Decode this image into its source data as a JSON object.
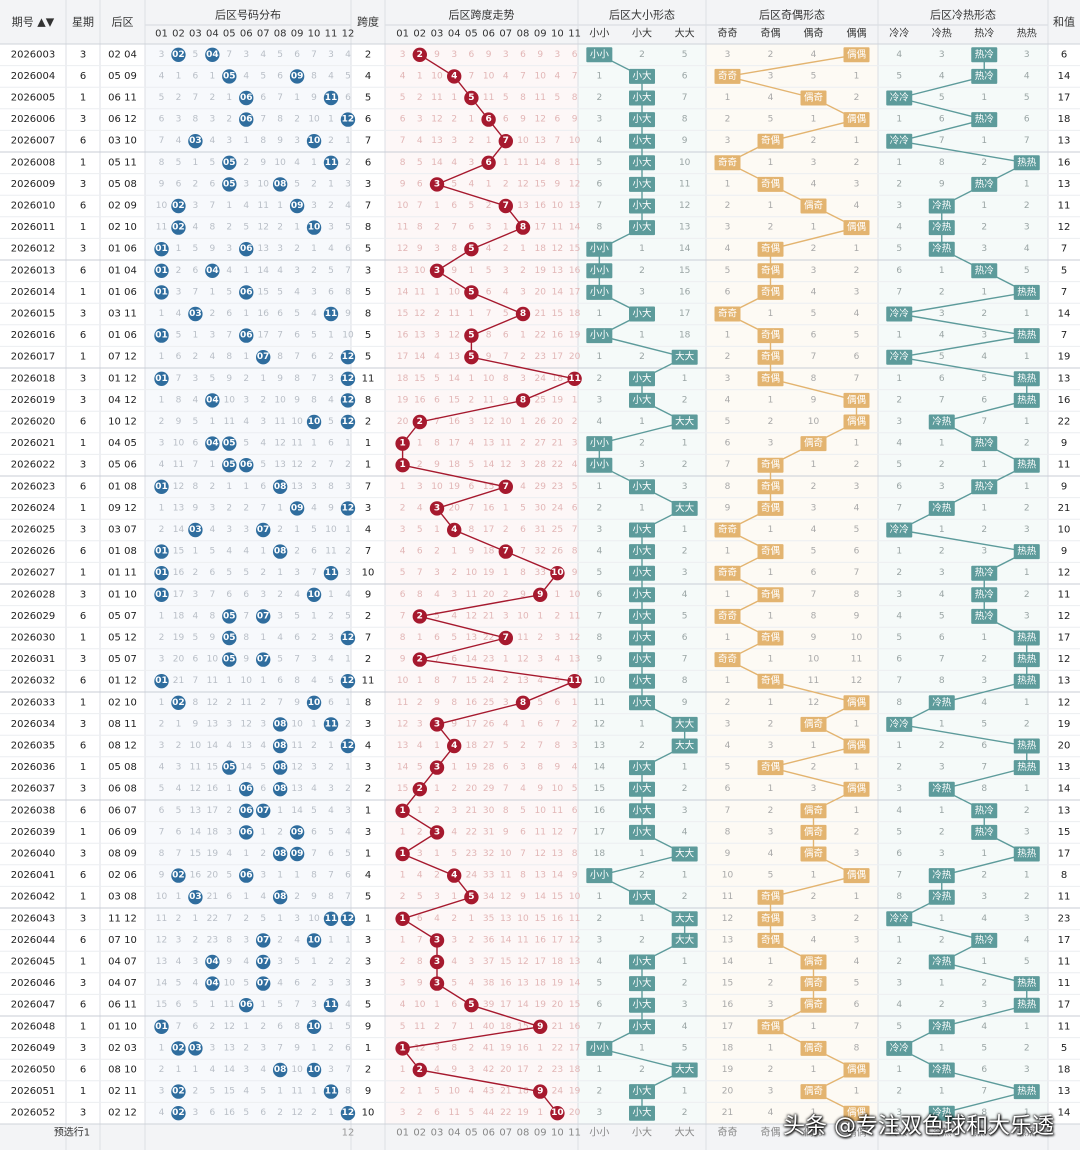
{
  "header": {
    "period": "期号",
    "weekday": "星期",
    "back": "后区",
    "dist": "后区号码分布",
    "span": "跨度",
    "span_trend": "后区跨度走势",
    "size": "后区大小形态",
    "parity": "后区奇偶形态",
    "hotcold": "后区冷热形态",
    "sum": "和值"
  },
  "num_labels": [
    "01",
    "02",
    "03",
    "04",
    "05",
    "06",
    "07",
    "08",
    "09",
    "10",
    "11",
    "12"
  ],
  "span_labels": [
    "01",
    "02",
    "03",
    "04",
    "05",
    "06",
    "07",
    "08",
    "09",
    "10",
    "11"
  ],
  "size_labels": [
    "小小",
    "小大",
    "大大"
  ],
  "parity_labels": [
    "奇奇",
    "奇偶",
    "偶奇",
    "偶偶"
  ],
  "hotcold_labels": [
    "冷冷",
    "冷热",
    "热冷",
    "热热"
  ],
  "footer": {
    "label": "预选行1",
    "dist_tail": "12"
  },
  "watermark": "头条 @专注双色球和大乐透",
  "colors": {
    "blue_ball": "#2f6d9e",
    "red_ball": "#a6192e",
    "size_teal": "#5d9b9b",
    "parity_orange": "#e3b470",
    "hotcold_teal": "#5d9b9b"
  },
  "chart_data": {
    "type": "table",
    "rows": [
      {
        "period": "2026003",
        "week": "3",
        "back": "02 04",
        "nums": [
          2,
          4
        ],
        "span": 2,
        "size": "小小",
        "parity": "偶偶",
        "hc": "热冷",
        "sum": 6
      },
      {
        "period": "2026004",
        "week": "6",
        "back": "05 09",
        "nums": [
          5,
          9
        ],
        "span": 4,
        "size": "小大",
        "parity": "奇奇",
        "hc": "热冷",
        "sum": 14
      },
      {
        "period": "2026005",
        "week": "1",
        "back": "06 11",
        "nums": [
          6,
          11
        ],
        "span": 5,
        "size": "小大",
        "parity": "偶奇",
        "hc": "冷冷",
        "sum": 17
      },
      {
        "period": "2026006",
        "week": "3",
        "back": "06 12",
        "nums": [
          6,
          12
        ],
        "span": 6,
        "size": "小大",
        "parity": "偶偶",
        "hc": "热冷",
        "sum": 18
      },
      {
        "period": "2026007",
        "week": "6",
        "back": "03 10",
        "nums": [
          3,
          10
        ],
        "span": 7,
        "size": "小大",
        "parity": "奇偶",
        "hc": "冷冷",
        "sum": 13
      },
      {
        "period": "2026008",
        "week": "1",
        "back": "05 11",
        "nums": [
          5,
          11
        ],
        "span": 6,
        "size": "小大",
        "parity": "奇奇",
        "hc": "热热",
        "sum": 16
      },
      {
        "period": "2026009",
        "week": "3",
        "back": "05 08",
        "nums": [
          5,
          8
        ],
        "span": 3,
        "size": "小大",
        "parity": "奇偶",
        "hc": "热冷",
        "sum": 13
      },
      {
        "period": "2026010",
        "week": "6",
        "back": "02 09",
        "nums": [
          2,
          9
        ],
        "span": 7,
        "size": "小大",
        "parity": "偶奇",
        "hc": "冷热",
        "sum": 11
      },
      {
        "period": "2026011",
        "week": "1",
        "back": "02 10",
        "nums": [
          2,
          10
        ],
        "span": 8,
        "size": "小大",
        "parity": "偶偶",
        "hc": "冷热",
        "sum": 12
      },
      {
        "period": "2026012",
        "week": "3",
        "back": "01 06",
        "nums": [
          1,
          6
        ],
        "span": 5,
        "size": "小小",
        "parity": "奇偶",
        "hc": "冷热",
        "sum": 7
      },
      {
        "period": "2026013",
        "week": "6",
        "back": "01 04",
        "nums": [
          1,
          4
        ],
        "span": 3,
        "size": "小小",
        "parity": "奇偶",
        "hc": "热冷",
        "sum": 5
      },
      {
        "period": "2026014",
        "week": "1",
        "back": "01 06",
        "nums": [
          1,
          6
        ],
        "span": 5,
        "size": "小小",
        "parity": "奇偶",
        "hc": "热热",
        "sum": 7
      },
      {
        "period": "2026015",
        "week": "3",
        "back": "03 11",
        "nums": [
          3,
          11
        ],
        "span": 8,
        "size": "小大",
        "parity": "奇奇",
        "hc": "冷冷",
        "sum": 14
      },
      {
        "period": "2026016",
        "week": "6",
        "back": "01 06",
        "nums": [
          1,
          6
        ],
        "span": 5,
        "size": "小小",
        "parity": "奇偶",
        "hc": "热热",
        "sum": 7
      },
      {
        "period": "2026017",
        "week": "1",
        "back": "07 12",
        "nums": [
          7,
          12
        ],
        "span": 5,
        "size": "大大",
        "parity": "奇偶",
        "hc": "冷冷",
        "sum": 19
      },
      {
        "period": "2026018",
        "week": "3",
        "back": "01 12",
        "nums": [
          1,
          12
        ],
        "span": 11,
        "size": "小大",
        "parity": "奇偶",
        "hc": "热热",
        "sum": 13
      },
      {
        "period": "2026019",
        "week": "3",
        "back": "04 12",
        "nums": [
          4,
          12
        ],
        "span": 8,
        "size": "小大",
        "parity": "偶偶",
        "hc": "热热",
        "sum": 16
      },
      {
        "period": "2026020",
        "week": "6",
        "back": "10 12",
        "nums": [
          10,
          12
        ],
        "span": 2,
        "size": "大大",
        "parity": "偶偶",
        "hc": "冷热",
        "sum": 22
      },
      {
        "period": "2026021",
        "week": "1",
        "back": "04 05",
        "nums": [
          4,
          5
        ],
        "span": 1,
        "size": "小小",
        "parity": "偶奇",
        "hc": "热冷",
        "sum": 9
      },
      {
        "period": "2026022",
        "week": "3",
        "back": "05 06",
        "nums": [
          5,
          6
        ],
        "span": 1,
        "size": "小小",
        "parity": "奇偶",
        "hc": "热热",
        "sum": 11
      },
      {
        "period": "2026023",
        "week": "6",
        "back": "01 08",
        "nums": [
          1,
          8
        ],
        "span": 7,
        "size": "小大",
        "parity": "奇偶",
        "hc": "热冷",
        "sum": 9
      },
      {
        "period": "2026024",
        "week": "1",
        "back": "09 12",
        "nums": [
          9,
          12
        ],
        "span": 3,
        "size": "大大",
        "parity": "奇偶",
        "hc": "冷热",
        "sum": 21
      },
      {
        "period": "2026025",
        "week": "3",
        "back": "03 07",
        "nums": [
          3,
          7
        ],
        "span": 4,
        "size": "小大",
        "parity": "奇奇",
        "hc": "冷冷",
        "sum": 10
      },
      {
        "period": "2026026",
        "week": "6",
        "back": "01 08",
        "nums": [
          1,
          8
        ],
        "span": 7,
        "size": "小大",
        "parity": "奇偶",
        "hc": "热热",
        "sum": 9
      },
      {
        "period": "2026027",
        "week": "1",
        "back": "01 11",
        "nums": [
          1,
          11
        ],
        "span": 10,
        "size": "小大",
        "parity": "奇奇",
        "hc": "热冷",
        "sum": 12
      },
      {
        "period": "2026028",
        "week": "3",
        "back": "01 10",
        "nums": [
          1,
          10
        ],
        "span": 9,
        "size": "小大",
        "parity": "奇偶",
        "hc": "热冷",
        "sum": 11
      },
      {
        "period": "2026029",
        "week": "6",
        "back": "05 07",
        "nums": [
          5,
          7
        ],
        "span": 2,
        "size": "小大",
        "parity": "奇奇",
        "hc": "热冷",
        "sum": 12
      },
      {
        "period": "2026030",
        "week": "1",
        "back": "05 12",
        "nums": [
          5,
          12
        ],
        "span": 7,
        "size": "小大",
        "parity": "奇偶",
        "hc": "热热",
        "sum": 17
      },
      {
        "period": "2026031",
        "week": "3",
        "back": "05 07",
        "nums": [
          5,
          7
        ],
        "span": 2,
        "size": "小大",
        "parity": "奇奇",
        "hc": "热热",
        "sum": 12
      },
      {
        "period": "2026032",
        "week": "6",
        "back": "01 12",
        "nums": [
          1,
          12
        ],
        "span": 11,
        "size": "小大",
        "parity": "奇偶",
        "hc": "热热",
        "sum": 13
      },
      {
        "period": "2026033",
        "week": "1",
        "back": "02 10",
        "nums": [
          2,
          10
        ],
        "span": 8,
        "size": "小大",
        "parity": "偶偶",
        "hc": "冷热",
        "sum": 12
      },
      {
        "period": "2026034",
        "week": "3",
        "back": "08 11",
        "nums": [
          8,
          11
        ],
        "span": 3,
        "size": "大大",
        "parity": "偶奇",
        "hc": "冷冷",
        "sum": 19
      },
      {
        "period": "2026035",
        "week": "6",
        "back": "08 12",
        "nums": [
          8,
          12
        ],
        "span": 4,
        "size": "大大",
        "parity": "偶偶",
        "hc": "热热",
        "sum": 20
      },
      {
        "period": "2026036",
        "week": "1",
        "back": "05 08",
        "nums": [
          5,
          8
        ],
        "span": 3,
        "size": "小大",
        "parity": "奇偶",
        "hc": "热热",
        "sum": 13
      },
      {
        "period": "2026037",
        "week": "3",
        "back": "06 08",
        "nums": [
          6,
          8
        ],
        "span": 2,
        "size": "小大",
        "parity": "偶偶",
        "hc": "冷热",
        "sum": 14
      },
      {
        "period": "2026038",
        "week": "6",
        "back": "06 07",
        "nums": [
          6,
          7
        ],
        "span": 1,
        "size": "小大",
        "parity": "偶奇",
        "hc": "热冷",
        "sum": 13
      },
      {
        "period": "2026039",
        "week": "1",
        "back": "06 09",
        "nums": [
          6,
          9
        ],
        "span": 3,
        "size": "小大",
        "parity": "偶奇",
        "hc": "热冷",
        "sum": 15
      },
      {
        "period": "2026040",
        "week": "3",
        "back": "08 09",
        "nums": [
          8,
          9
        ],
        "span": 1,
        "size": "大大",
        "parity": "偶奇",
        "hc": "热热",
        "sum": 17
      },
      {
        "period": "2026041",
        "week": "6",
        "back": "02 06",
        "nums": [
          2,
          6
        ],
        "span": 4,
        "size": "小小",
        "parity": "偶偶",
        "hc": "冷热",
        "sum": 8
      },
      {
        "period": "2026042",
        "week": "1",
        "back": "03 08",
        "nums": [
          3,
          8
        ],
        "span": 5,
        "size": "小大",
        "parity": "奇偶",
        "hc": "冷热",
        "sum": 11
      },
      {
        "period": "2026043",
        "week": "3",
        "back": "11 12",
        "nums": [
          11,
          12
        ],
        "span": 1,
        "size": "大大",
        "parity": "奇偶",
        "hc": "冷冷",
        "sum": 23
      },
      {
        "period": "2026044",
        "week": "6",
        "back": "07 10",
        "nums": [
          7,
          10
        ],
        "span": 3,
        "size": "大大",
        "parity": "奇偶",
        "hc": "热冷",
        "sum": 17
      },
      {
        "period": "2026045",
        "week": "1",
        "back": "04 07",
        "nums": [
          4,
          7
        ],
        "span": 3,
        "size": "小大",
        "parity": "偶奇",
        "hc": "冷热",
        "sum": 11
      },
      {
        "period": "2026046",
        "week": "3",
        "back": "04 07",
        "nums": [
          4,
          7
        ],
        "span": 3,
        "size": "小大",
        "parity": "偶奇",
        "hc": "热热",
        "sum": 11
      },
      {
        "period": "2026047",
        "week": "6",
        "back": "06 11",
        "nums": [
          6,
          11
        ],
        "span": 5,
        "size": "小大",
        "parity": "偶奇",
        "hc": "热热",
        "sum": 17
      },
      {
        "period": "2026048",
        "week": "1",
        "back": "01 10",
        "nums": [
          1,
          10
        ],
        "span": 9,
        "size": "小大",
        "parity": "奇偶",
        "hc": "冷热",
        "sum": 11
      },
      {
        "period": "2026049",
        "week": "3",
        "back": "02 03",
        "nums": [
          2,
          3
        ],
        "span": 1,
        "size": "小小",
        "parity": "偶奇",
        "hc": "冷冷",
        "sum": 5
      },
      {
        "period": "2026050",
        "week": "6",
        "back": "08 10",
        "nums": [
          8,
          10
        ],
        "span": 2,
        "size": "大大",
        "parity": "偶偶",
        "hc": "冷热",
        "sum": 18
      },
      {
        "period": "2026051",
        "week": "1",
        "back": "02 11",
        "nums": [
          2,
          11
        ],
        "span": 9,
        "size": "小大",
        "parity": "偶奇",
        "hc": "热热",
        "sum": 13
      },
      {
        "period": "2026052",
        "week": "3",
        "back": "02 12",
        "nums": [
          2,
          12
        ],
        "span": 10,
        "size": "小大",
        "parity": "偶偶",
        "hc": "冷热",
        "sum": 14
      }
    ]
  }
}
